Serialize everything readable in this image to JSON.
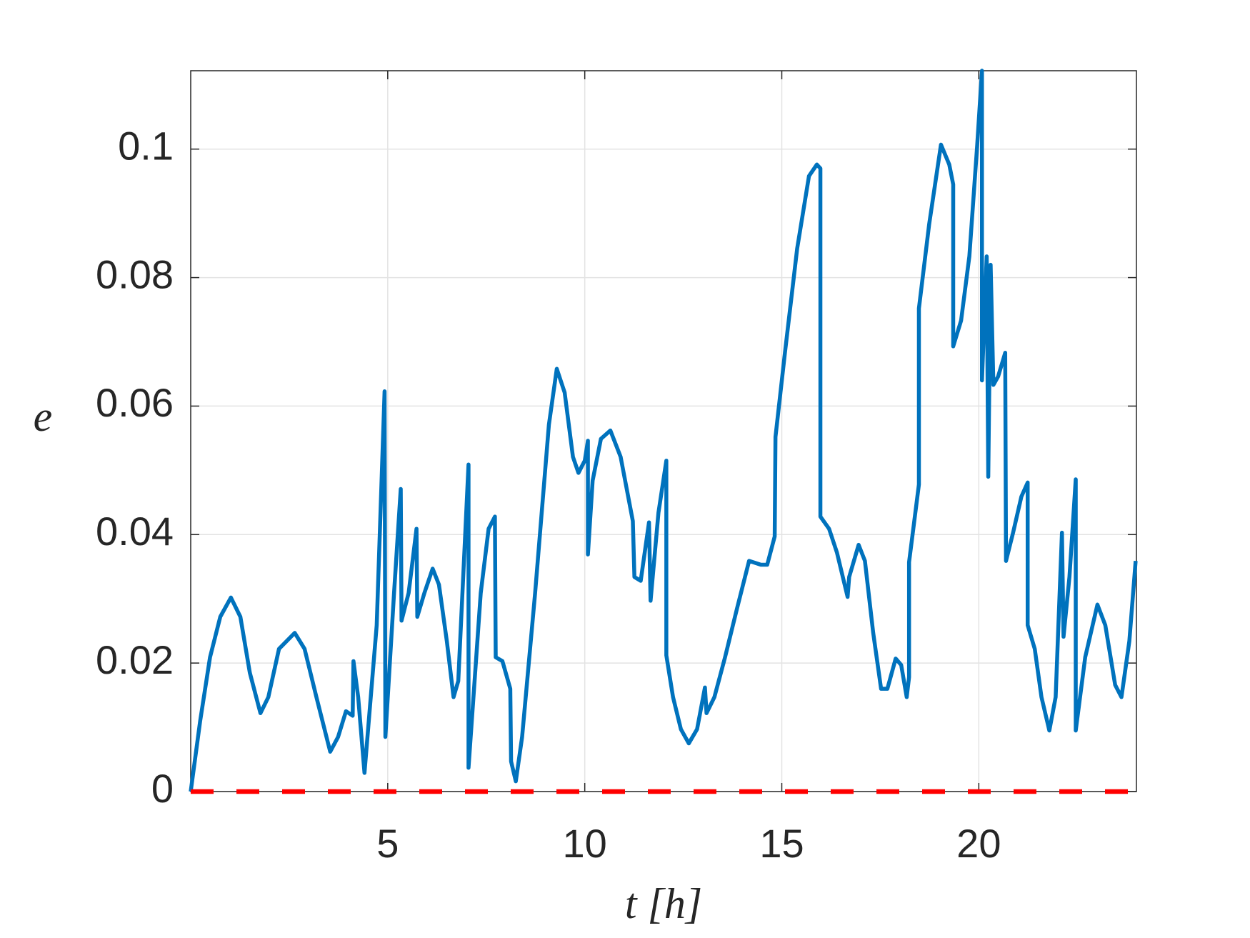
{
  "chart_data": {
    "type": "line",
    "xlabel": "t [h]",
    "ylabel": "e",
    "xlim": [
      0,
      24
    ],
    "ylim": [
      0,
      0.1122
    ],
    "xticks": [
      5,
      10,
      15,
      20
    ],
    "yticks": [
      0,
      0.02,
      0.04,
      0.06,
      0.08,
      0.1
    ],
    "grid": true,
    "series": [
      {
        "color": "#0072bd",
        "dash": false,
        "x": [
          0,
          0.24,
          0.49,
          0.75,
          1.02,
          1.26,
          1.5,
          1.77,
          1.97,
          2.24,
          2.64,
          2.89,
          3.19,
          3.54,
          3.74,
          3.94,
          4.11,
          4.13,
          4.25,
          4.41,
          4.72,
          4.92,
          4.94,
          5.16,
          5.33,
          5.35,
          5.53,
          5.73,
          5.75,
          5.93,
          6.14,
          6.3,
          6.5,
          6.67,
          6.79,
          7.05,
          7.05,
          7.36,
          7.56,
          7.72,
          7.74,
          7.91,
          8.11,
          8.13,
          8.25,
          8.41,
          8.74,
          9.09,
          9.29,
          9.49,
          9.7,
          9.84,
          10.0,
          10.08,
          10.08,
          10.2,
          10.41,
          10.65,
          10.91,
          11.22,
          11.26,
          11.42,
          11.63,
          11.67,
          11.87,
          12.07,
          12.07,
          12.24,
          12.44,
          12.64,
          12.85,
          13.05,
          13.09,
          13.29,
          13.56,
          13.86,
          14.17,
          14.47,
          14.63,
          14.82,
          14.84,
          15.08,
          15.39,
          15.69,
          15.89,
          15.98,
          15.98,
          16.2,
          16.4,
          16.67,
          16.71,
          16.95,
          17.11,
          17.32,
          17.52,
          17.68,
          17.89,
          18.03,
          18.17,
          18.23,
          18.23,
          18.48,
          18.48,
          18.74,
          19.04,
          19.25,
          19.35,
          19.35,
          19.55,
          19.76,
          19.96,
          20.08,
          20.08,
          20.2,
          20.24,
          20.3,
          20.37,
          20.49,
          20.67,
          20.69,
          20.87,
          21.08,
          21.24,
          21.24,
          21.42,
          21.59,
          21.79,
          21.95,
          22.11,
          22.15,
          22.3,
          22.46,
          22.46,
          22.7,
          23.01,
          23.21,
          23.46,
          23.62,
          23.82,
          23.98
        ],
        "values": [
          0,
          0.011,
          0.0209,
          0.0272,
          0.0302,
          0.0272,
          0.0185,
          0.0122,
          0.0147,
          0.0222,
          0.0247,
          0.0222,
          0.0147,
          0.0062,
          0.0085,
          0.0125,
          0.0118,
          0.0203,
          0.0147,
          0.0029,
          0.0259,
          0.0623,
          0.0085,
          0.0309,
          0.0471,
          0.0266,
          0.0309,
          0.0409,
          0.0272,
          0.0309,
          0.0347,
          0.0322,
          0.0234,
          0.0147,
          0.0172,
          0.0509,
          0.0037,
          0.0309,
          0.0409,
          0.0428,
          0.0209,
          0.0203,
          0.016,
          0.0047,
          0.0016,
          0.0085,
          0.0309,
          0.0571,
          0.0658,
          0.0621,
          0.0521,
          0.0496,
          0.0515,
          0.0546,
          0.0369,
          0.0484,
          0.0549,
          0.0562,
          0.0521,
          0.0421,
          0.0334,
          0.0328,
          0.0419,
          0.0297,
          0.0434,
          0.0515,
          0.0212,
          0.0147,
          0.0097,
          0.0075,
          0.0097,
          0.0162,
          0.0122,
          0.0147,
          0.0209,
          0.0284,
          0.0359,
          0.0353,
          0.0353,
          0.0397,
          0.0552,
          0.0683,
          0.0845,
          0.0958,
          0.0976,
          0.097,
          0.0428,
          0.0409,
          0.0372,
          0.0303,
          0.0334,
          0.0384,
          0.0359,
          0.0247,
          0.016,
          0.016,
          0.0207,
          0.0197,
          0.0147,
          0.0178,
          0.0357,
          0.0478,
          0.0752,
          0.0883,
          0.1007,
          0.0976,
          0.0945,
          0.0693,
          0.0733,
          0.0833,
          0.1007,
          0.1122,
          0.064,
          0.0833,
          0.049,
          0.082,
          0.0633,
          0.0646,
          0.0683,
          0.0359,
          0.0403,
          0.0459,
          0.0481,
          0.0259,
          0.0222,
          0.0147,
          0.0095,
          0.0147,
          0.0403,
          0.0241,
          0.0334,
          0.0486,
          0.0095,
          0.0209,
          0.0291,
          0.0259,
          0.0166,
          0.0147,
          0.0234,
          0.0359
        ]
      },
      {
        "color": "#ff0000",
        "dash": true,
        "x": [
          0,
          24
        ],
        "values": [
          0,
          0
        ]
      }
    ]
  }
}
